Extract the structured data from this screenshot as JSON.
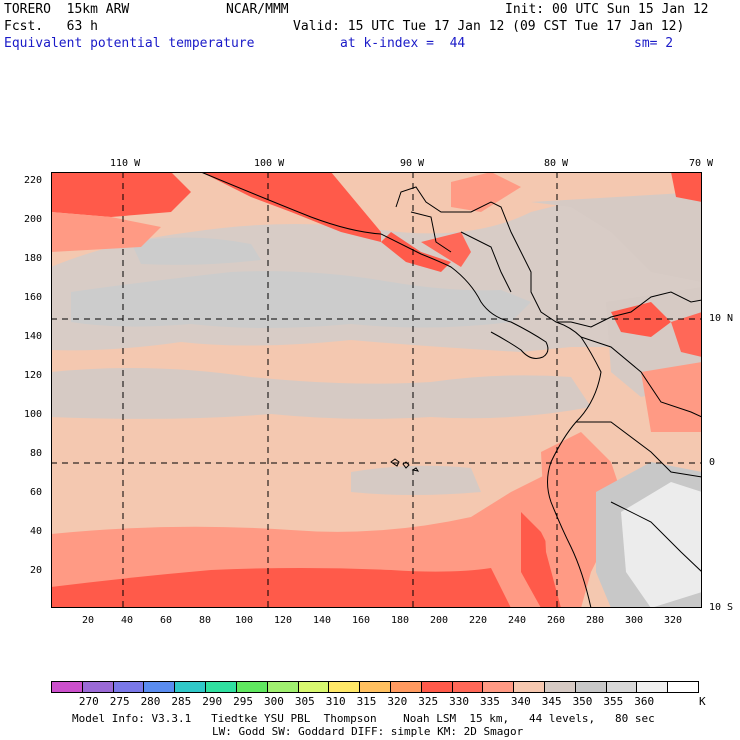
{
  "header": {
    "model": "TORERO  15km ARW",
    "center": "NCAR/MMM",
    "init": "Init: 00 UTC Sun 15 Jan 12",
    "fcst": "Fcst.   63 h",
    "valid": "Valid: 15 UTC Tue 17 Jan 12 (09 CST Tue 17 Jan 12)",
    "field": "Equivalent potential temperature",
    "level": "at k-index =  44",
    "smooth": "sm= 2"
  },
  "map": {
    "top_lon_labels": [
      "110 W",
      "100 W",
      "90 W",
      "80 W",
      "70 W"
    ],
    "right_lat_labels": [
      "10 N",
      "0",
      "10 S"
    ],
    "y_ticks": [
      "220",
      "200",
      "180",
      "160",
      "140",
      "120",
      "100",
      "80",
      "60",
      "40",
      "20"
    ],
    "x_ticks": [
      "20",
      "40",
      "60",
      "80",
      "100",
      "120",
      "140",
      "160",
      "180",
      "200",
      "220",
      "240",
      "260",
      "280",
      "300",
      "320"
    ]
  },
  "colorbar": {
    "colors": [
      "#cc50cc",
      "#9b6ad6",
      "#7a78e8",
      "#5a8cf0",
      "#30c8c8",
      "#30e0a0",
      "#60e860",
      "#a0f070",
      "#d8f870",
      "#ffe868",
      "#ffc060",
      "#ff9a60",
      "#ff5a4a",
      "#ff6858",
      "#ff9a84",
      "#f6c8b0",
      "#d6cac4",
      "#c8c8c8",
      "#d8d8d8",
      "#f0f0f0",
      "#ffffff"
    ],
    "labels": [
      "270",
      "275",
      "280",
      "285",
      "290",
      "295",
      "300",
      "305",
      "310",
      "315",
      "320",
      "325",
      "330",
      "335",
      "340",
      "345",
      "350",
      "355",
      "360"
    ],
    "unit": "K"
  },
  "footer": {
    "line1": "Model Info: V3.3.1   Tiedtke YSU PBL  Thompson    Noah LSM  15 km,   44 levels,   80 sec",
    "line2": "LW: Godd SW: Goddard DIFF: simple KM: 2D Smagor"
  }
}
